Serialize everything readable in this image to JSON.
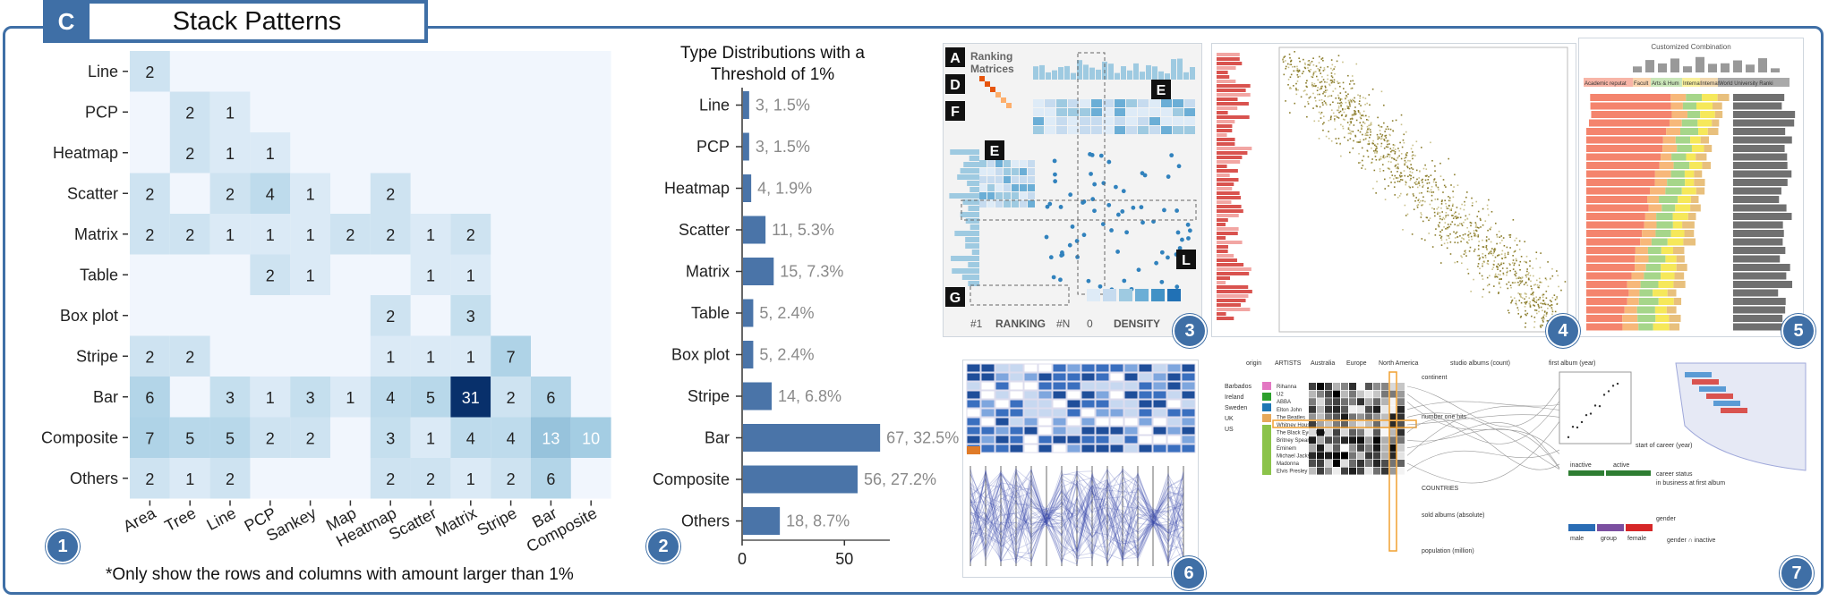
{
  "header": {
    "letter": "C",
    "title": "Stack Patterns"
  },
  "colors": {
    "accent": "#3f6fa6",
    "bar": "#4a74a8",
    "grid_base": "#f1f6fd",
    "dark": "#08306b"
  },
  "footnote": "*Only show the rows and columns with amount larger than 1%",
  "badges": [
    "1",
    "2",
    "3",
    "4",
    "5",
    "6",
    "7"
  ],
  "chart_data": [
    {
      "type": "heatmap",
      "rows": [
        "Line",
        "PCP",
        "Heatmap",
        "Scatter",
        "Matrix",
        "Table",
        "Box plot",
        "Stripe",
        "Bar",
        "Composite",
        "Others"
      ],
      "columns": [
        "Area",
        "Tree",
        "Line",
        "PCP",
        "Sankey",
        "Map",
        "Heatmap",
        "Scatter",
        "Matrix",
        "Stripe",
        "Bar",
        "Composite"
      ],
      "values": [
        [
          2,
          null,
          null,
          null,
          null,
          null,
          null,
          null,
          null,
          null,
          null,
          null
        ],
        [
          null,
          2,
          1,
          null,
          null,
          null,
          null,
          null,
          null,
          null,
          null,
          null
        ],
        [
          null,
          2,
          1,
          1,
          null,
          null,
          null,
          null,
          null,
          null,
          null,
          null
        ],
        [
          2,
          null,
          2,
          4,
          1,
          null,
          2,
          null,
          null,
          null,
          null,
          null
        ],
        [
          2,
          2,
          1,
          1,
          1,
          2,
          2,
          1,
          2,
          null,
          null,
          null
        ],
        [
          null,
          null,
          null,
          2,
          1,
          null,
          null,
          1,
          1,
          null,
          null,
          null
        ],
        [
          null,
          null,
          null,
          null,
          null,
          null,
          2,
          null,
          3,
          null,
          null,
          null
        ],
        [
          2,
          2,
          null,
          null,
          null,
          null,
          1,
          1,
          1,
          7,
          null,
          null
        ],
        [
          6,
          null,
          3,
          1,
          3,
          1,
          4,
          5,
          31,
          2,
          6,
          null
        ],
        [
          7,
          5,
          5,
          2,
          2,
          null,
          3,
          1,
          4,
          4,
          13,
          10
        ],
        [
          2,
          1,
          2,
          null,
          null,
          null,
          2,
          2,
          1,
          2,
          6,
          null
        ]
      ]
    },
    {
      "type": "bar",
      "orientation": "horizontal",
      "title": "Type Distributions with a Threshold of 1%",
      "categories": [
        "Line",
        "PCP",
        "Heatmap",
        "Scatter",
        "Matrix",
        "Table",
        "Box plot",
        "Stripe",
        "Bar",
        "Composite",
        "Others"
      ],
      "values": [
        3,
        3,
        4,
        11,
        15,
        5,
        5,
        14,
        67,
        56,
        18
      ],
      "labels": [
        "3, 1.5%",
        "3, 1.5%",
        "4, 1.9%",
        "11, 5.3%",
        "15, 7.3%",
        "5, 2.4%",
        "5, 2.4%",
        "14, 6.8%",
        "67, 32.5%",
        "56, 27.2%",
        "18, 8.7%"
      ],
      "xticks": [
        "0",
        "50"
      ],
      "xlim": [
        0,
        70
      ]
    }
  ],
  "thumbnails": {
    "t3": {
      "labels": [
        "A",
        "D",
        "F",
        "E",
        "E",
        "G",
        "L"
      ],
      "title": "Ranking Matrices",
      "axis_left": [
        "#1",
        "RANKING",
        "#N"
      ],
      "axis_right": [
        "0",
        "DENSITY"
      ]
    },
    "t5": {
      "title": "Customized Combination",
      "legend": [
        "Academic reputat",
        "Facult",
        "Arts & Hum",
        "Internat",
        "Internat",
        "World University Ranki"
      ]
    },
    "t7": {
      "labels": [
        "origin",
        "ARTISTS",
        "Australia",
        "Europe",
        "North America",
        "studio albums (count)",
        "first album (year)",
        "continent",
        "number one hits",
        "COUNTRIES",
        "sold albums (absolute)",
        "population (million)",
        "start of career (year)",
        "career status",
        "in business at first album",
        "gender",
        "gender ∩ inactive",
        "inactive",
        "active",
        "male",
        "group",
        "female",
        "inactive"
      ],
      "countries": [
        "Barbados",
        "Ireland",
        "Sweden",
        "UK",
        "US"
      ],
      "artists": [
        "Rihanna",
        "U2",
        "ABBA",
        "Elton John",
        "The Beatles",
        "Whitney Houston",
        "The Black Eyed Peas",
        "Britney Spears",
        "Eminem",
        "Michael Jackson",
        "Madonna",
        "Elvis Presley"
      ]
    }
  }
}
